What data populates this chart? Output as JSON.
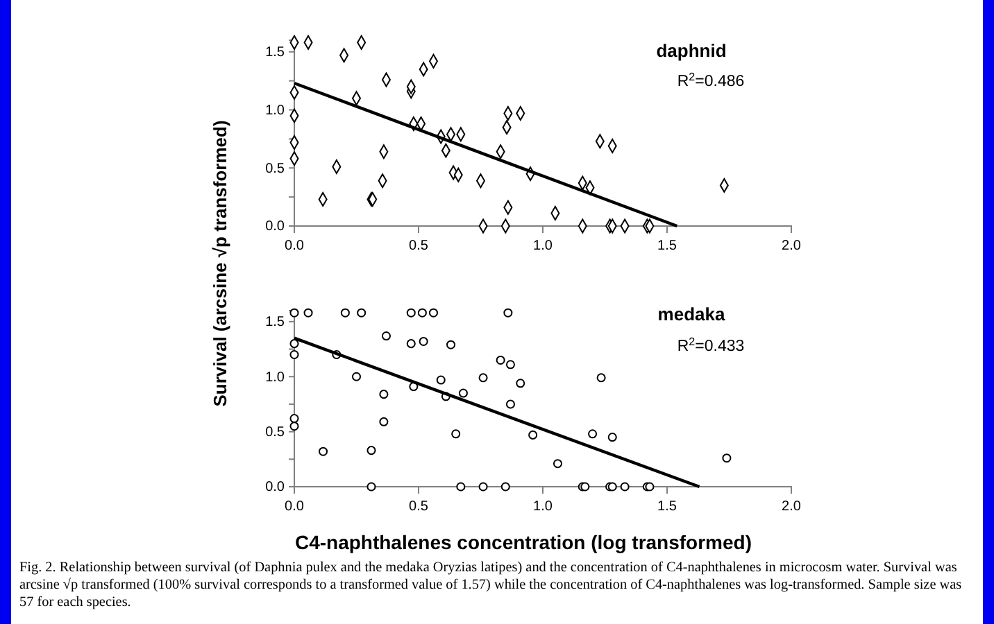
{
  "chart_data": [
    {
      "type": "scatter",
      "title": "daphnid",
      "ylabel": "Survival (arcsine √p transformed)",
      "annotations": [
        "R$^{2}$=0.486"
      ],
      "xlim": [
        0,
        2
      ],
      "xticks": [
        {
          "value": 0,
          "label": "0.0"
        },
        {
          "value": 0.5,
          "label": "0.5"
        },
        {
          "value": 1,
          "label": "1.0"
        },
        {
          "value": 1.5,
          "label": "1.5"
        },
        {
          "value": 2,
          "label": "2.0"
        }
      ],
      "ylim": [
        0,
        1.6
      ],
      "yticks": [
        {
          "value": 0,
          "label": "0.0"
        },
        {
          "value": 0.25,
          "label": null
        },
        {
          "value": 0.5,
          "label": "0.5"
        },
        {
          "value": 0.75,
          "label": null
        },
        {
          "value": 1,
          "label": "1.0"
        },
        {
          "value": 1.25,
          "label": null
        },
        {
          "value": 1.5,
          "label": "1.5"
        }
      ],
      "series": [
        {
          "marker": "diamond",
          "color": "#000000",
          "x": [
            0,
            0.056,
            0.27,
            0.2,
            0,
            0,
            0,
            0,
            0.115,
            0.17,
            0.25,
            0.31,
            0.315,
            0.36,
            0.355,
            0.37,
            0.47,
            0.47,
            0.48,
            0.51,
            0.52,
            0.56,
            0.59,
            0.61,
            0.63,
            0.64,
            0.66,
            0.67,
            0.75,
            0.76,
            0.85,
            0.83,
            0.855,
            0.86,
            0.86,
            0.91,
            0.95,
            1.05,
            1.16,
            1.16,
            1.19,
            1.23,
            1.28,
            1.27,
            1.28,
            1.33,
            1.42,
            1.43,
            1.73
          ],
          "values": [
            1.58,
            1.58,
            1.58,
            1.47,
            1.15,
            0.95,
            0.72,
            0.58,
            0.23,
            0.51,
            1.1,
            0.23,
            0.23,
            0.64,
            0.39,
            1.26,
            1.16,
            1.2,
            0.88,
            0.88,
            1.35,
            1.42,
            0.77,
            0.65,
            0.79,
            0.46,
            0.44,
            0.79,
            0.39,
            0,
            0,
            0.64,
            0.85,
            0.97,
            0.16,
            0.97,
            0.45,
            0.11,
            0,
            0.37,
            0.33,
            0.73,
            0.69,
            0,
            0,
            0,
            0,
            0,
            0.35
          ]
        },
        {
          "type": "line",
          "color": "#000000",
          "x": [
            0,
            1.54
          ],
          "values": [
            1.23,
            0
          ]
        }
      ]
    },
    {
      "type": "scatter",
      "title": "medaka",
      "xlabel": "C4-naphthalenes concentration (log transformed)",
      "annotations": [
        "R$^{2}$=0.433",
        "Fig. 2.  Relationship between survival (of Daphnia pulex and the medaka Oryzias latipes) and the concentration of C4-naphthalenes in microcosm water. Survival was arcsine √p transformed (100% survival corresponds to a transformed value of 1.57) while the concentration of C4-naphthalenes was log-transformed. Sample size was 57 for each species."
      ],
      "xlim": [
        0,
        2
      ],
      "xticks": [
        {
          "value": 0,
          "label": "0.0"
        },
        {
          "value": 0.5,
          "label": "0.5"
        },
        {
          "value": 1,
          "label": "1.0"
        },
        {
          "value": 1.5,
          "label": "1.5"
        },
        {
          "value": 2,
          "label": "2.0"
        }
      ],
      "ylim": [
        0,
        1.6
      ],
      "yticks": [
        {
          "value": 0,
          "label": "0.0"
        },
        {
          "value": 0.25,
          "label": null
        },
        {
          "value": 0.5,
          "label": "0.5"
        },
        {
          "value": 0.75,
          "label": null
        },
        {
          "value": 1,
          "label": "1.0"
        },
        {
          "value": 1.25,
          "label": null
        },
        {
          "value": 1.5,
          "label": "1.5"
        }
      ],
      "series": [
        {
          "marker": "circle",
          "color": "#000000",
          "x": [
            0,
            0.056,
            0.205,
            0.27,
            0.47,
            0.515,
            0.56,
            0.86,
            0,
            0,
            0,
            0,
            0.116,
            0.17,
            0.25,
            0.31,
            0.31,
            0.36,
            0.36,
            0.37,
            0.47,
            0.48,
            0.52,
            0.59,
            0.61,
            0.63,
            0.65,
            0.68,
            0.67,
            0.76,
            0.76,
            0.83,
            0.87,
            0.85,
            0.87,
            0.91,
            0.96,
            1.06,
            1.16,
            1.17,
            1.2,
            1.235,
            1.28,
            1.27,
            1.28,
            1.33,
            1.42,
            1.43,
            1.74
          ],
          "values": [
            1.58,
            1.58,
            1.58,
            1.58,
            1.58,
            1.58,
            1.58,
            1.58,
            1.3,
            1.2,
            0.62,
            0.55,
            0.32,
            1.2,
            1,
            0.33,
            0,
            0.84,
            0.59,
            1.37,
            1.3,
            0.91,
            1.32,
            0.97,
            0.82,
            1.29,
            0.48,
            0.85,
            0,
            0.99,
            0,
            1.15,
            1.11,
            0,
            0.75,
            0.94,
            0.47,
            0.21,
            0,
            0,
            0.48,
            0.99,
            0.45,
            0,
            0,
            0,
            0,
            0,
            0.26
          ]
        },
        {
          "type": "line",
          "color": "#000000",
          "x": [
            0,
            1.63
          ],
          "values": [
            1.35,
            0
          ]
        }
      ]
    }
  ]
}
